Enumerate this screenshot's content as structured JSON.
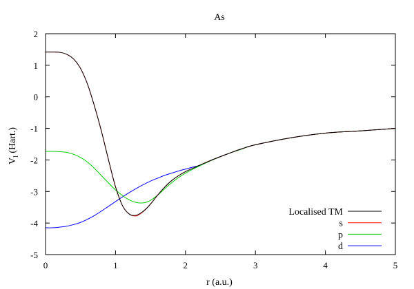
{
  "chart_data": {
    "type": "line",
    "title": "As",
    "xlabel": "r (a.u.)",
    "ylabel_main": "V",
    "ylabel_sub": "l",
    "ylabel_rest": " (Hart.)",
    "xlim": [
      0,
      5
    ],
    "ylim": [
      -5,
      2
    ],
    "xticks": [
      0,
      1,
      2,
      3,
      4,
      5
    ],
    "yticks": [
      -5,
      -4,
      -3,
      -2,
      -1,
      0,
      1,
      2
    ],
    "legend_position": "bottom-right",
    "series": [
      {
        "name": "Localised TM",
        "color": "#000000",
        "x": [
          0,
          0.1,
          0.2,
          0.3,
          0.4,
          0.5,
          0.6,
          0.7,
          0.8,
          0.9,
          1.0,
          1.1,
          1.2,
          1.3,
          1.4,
          1.5,
          1.6,
          1.7,
          1.8,
          1.9,
          2.0,
          2.1,
          2.2,
          2.4,
          2.6,
          2.8,
          3.0,
          3.5,
          4.0,
          4.5,
          5.0
        ],
        "y": [
          1.42,
          1.42,
          1.41,
          1.35,
          1.2,
          0.9,
          0.4,
          -0.3,
          -1.1,
          -2.0,
          -2.85,
          -3.45,
          -3.72,
          -3.75,
          -3.62,
          -3.4,
          -3.12,
          -2.87,
          -2.66,
          -2.5,
          -2.37,
          -2.27,
          -2.17,
          -1.98,
          -1.81,
          -1.65,
          -1.52,
          -1.3,
          -1.15,
          -1.08,
          -1.0
        ]
      },
      {
        "name": "s",
        "color": "#ff0000",
        "x": [
          0,
          0.1,
          0.2,
          0.3,
          0.4,
          0.5,
          0.6,
          0.7,
          0.8,
          0.9,
          1.0,
          1.1,
          1.2,
          1.3,
          1.4,
          1.5,
          1.6,
          1.7,
          1.8,
          1.9,
          2.0,
          2.1,
          2.2,
          2.4,
          2.6,
          2.8,
          3.0,
          3.5,
          4.0,
          4.5,
          5.0
        ],
        "y": [
          1.42,
          1.42,
          1.41,
          1.35,
          1.2,
          0.9,
          0.4,
          -0.3,
          -1.1,
          -2.0,
          -2.85,
          -3.45,
          -3.72,
          -3.77,
          -3.63,
          -3.4,
          -3.12,
          -2.87,
          -2.66,
          -2.5,
          -2.37,
          -2.27,
          -2.17,
          -1.98,
          -1.81,
          -1.65,
          -1.52,
          -1.3,
          -1.15,
          -1.08,
          -1.0
        ]
      },
      {
        "name": "p",
        "color": "#00cc00",
        "x": [
          0,
          0.1,
          0.2,
          0.3,
          0.4,
          0.5,
          0.6,
          0.7,
          0.8,
          0.9,
          1.0,
          1.1,
          1.2,
          1.3,
          1.4,
          1.5,
          1.6,
          1.7,
          1.8,
          1.9,
          2.0,
          2.1,
          2.2,
          2.4,
          2.6,
          2.8,
          3.0,
          3.5,
          4.0,
          4.5,
          5.0
        ],
        "y": [
          -1.73,
          -1.73,
          -1.74,
          -1.76,
          -1.82,
          -1.92,
          -2.07,
          -2.27,
          -2.5,
          -2.73,
          -2.95,
          -3.13,
          -3.27,
          -3.35,
          -3.36,
          -3.28,
          -3.12,
          -2.92,
          -2.73,
          -2.56,
          -2.42,
          -2.3,
          -2.19,
          -1.99,
          -1.81,
          -1.66,
          -1.52,
          -1.3,
          -1.15,
          -1.08,
          -1.0
        ]
      },
      {
        "name": "d",
        "color": "#0000ff",
        "x": [
          0,
          0.1,
          0.2,
          0.3,
          0.4,
          0.5,
          0.6,
          0.7,
          0.8,
          0.9,
          1.0,
          1.1,
          1.2,
          1.3,
          1.4,
          1.5,
          1.6,
          1.7,
          1.8,
          1.9,
          2.0,
          2.1,
          2.2,
          2.4,
          2.6,
          2.8,
          3.0,
          3.5,
          4.0,
          4.5,
          5.0
        ],
        "y": [
          -4.15,
          -4.15,
          -4.13,
          -4.1,
          -4.05,
          -3.98,
          -3.88,
          -3.76,
          -3.62,
          -3.47,
          -3.32,
          -3.17,
          -3.03,
          -2.9,
          -2.78,
          -2.67,
          -2.58,
          -2.49,
          -2.42,
          -2.35,
          -2.29,
          -2.23,
          -2.17,
          -1.98,
          -1.81,
          -1.65,
          -1.52,
          -1.3,
          -1.15,
          -1.08,
          -1.0
        ]
      }
    ]
  }
}
